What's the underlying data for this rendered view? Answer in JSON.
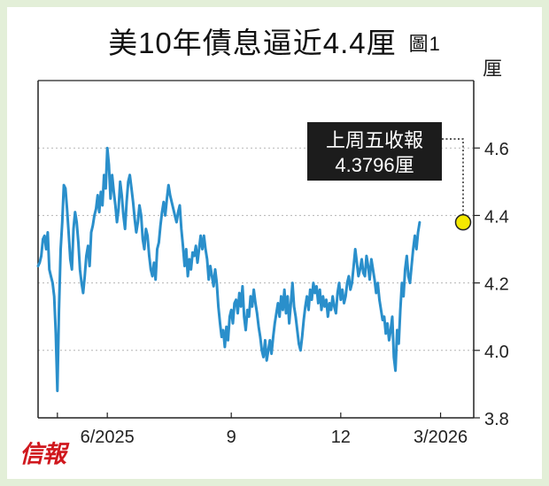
{
  "header": {
    "title": "美10年債息逼近4.4厘",
    "figure_label": "圖1"
  },
  "logo_text": "信報",
  "colors": {
    "line": "#2a8fcb",
    "grid": "#b5b5b5",
    "marker": "#f4e900",
    "callout_bg": "#1c1c1c",
    "background": "#e3efd8"
  },
  "chart_data": {
    "type": "line",
    "ylabel": "厘",
    "ylim": [
      3.8,
      4.8
    ],
    "yticks": [
      3.8,
      4.0,
      4.2,
      4.4,
      4.6
    ],
    "grid": "horizontal-dotted",
    "xlim": [
      0,
      264
    ],
    "xticks": [
      {
        "label": "6/2025",
        "x": 43
      },
      {
        "label": "9",
        "x": 120
      },
      {
        "label": "12",
        "x": 188
      },
      {
        "label": "3/2026",
        "x": 250
      }
    ],
    "annotation": {
      "text_line1": "上周五收報",
      "text_line2": "4.3796厘",
      "x": 264,
      "y": 4.3796
    },
    "series": [
      {
        "values": [
          4.25,
          4.26,
          4.28,
          4.33,
          4.34,
          4.3,
          4.35,
          4.24,
          4.22,
          4.2,
          4.16,
          4.05,
          3.88,
          4.12,
          4.3,
          4.38,
          4.49,
          4.48,
          4.42,
          4.35,
          4.27,
          4.24,
          4.36,
          4.41,
          4.38,
          4.32,
          4.24,
          4.2,
          4.17,
          4.22,
          4.28,
          4.31,
          4.25,
          4.35,
          4.37,
          4.4,
          4.42,
          4.46,
          4.41,
          4.47,
          4.43,
          4.52,
          4.48,
          4.6,
          4.55,
          4.45,
          4.52,
          4.47,
          4.43,
          4.38,
          4.42,
          4.5,
          4.46,
          4.4,
          4.36,
          4.44,
          4.5,
          4.52,
          4.48,
          4.44,
          4.39,
          4.35,
          4.38,
          4.43,
          4.4,
          4.33,
          4.3,
          4.36,
          4.34,
          4.28,
          4.24,
          4.22,
          4.26,
          4.21,
          4.3,
          4.32,
          4.37,
          4.41,
          4.44,
          4.4,
          4.45,
          4.49,
          4.46,
          4.44,
          4.42,
          4.4,
          4.38,
          4.41,
          4.43,
          4.36,
          4.31,
          4.25,
          4.3,
          4.22,
          4.27,
          4.24,
          4.29,
          4.28,
          4.31,
          4.26,
          4.3,
          4.34,
          4.3,
          4.34,
          4.3,
          4.27,
          4.21,
          4.25,
          4.22,
          4.19,
          4.24,
          4.2,
          4.13,
          4.08,
          4.04,
          4.06,
          4.01,
          4.07,
          4.03,
          4.1,
          4.12,
          4.08,
          4.14,
          4.15,
          4.11,
          4.17,
          4.13,
          4.19,
          4.1,
          4.06,
          4.12,
          4.1,
          4.16,
          4.13,
          4.18,
          4.14,
          4.11,
          4.07,
          4.04,
          4.0,
          3.98,
          4.03,
          3.97,
          4.0,
          4.03,
          3.99,
          4.04,
          4.08,
          4.11,
          4.14,
          4.1,
          4.16,
          4.12,
          4.18,
          4.11,
          4.16,
          4.08,
          4.14,
          4.2,
          4.13,
          4.1,
          4.06,
          4.02,
          4.0,
          4.04,
          4.09,
          4.13,
          4.16,
          4.12,
          4.18,
          4.15,
          4.2,
          4.17,
          4.19,
          4.14,
          4.18,
          4.12,
          4.16,
          4.13,
          4.15,
          4.1,
          4.14,
          4.12,
          4.16,
          4.13,
          4.11,
          4.17,
          4.2,
          4.15,
          4.18,
          4.14,
          4.16,
          4.2,
          4.22,
          4.18,
          4.2,
          4.25,
          4.3,
          4.26,
          4.22,
          4.24,
          4.27,
          4.23,
          4.22,
          4.28,
          4.25,
          4.21,
          4.27,
          4.24,
          4.21,
          4.17,
          4.2,
          4.15,
          4.12,
          4.09,
          4.1,
          4.05,
          4.08,
          4.03,
          4.06,
          4.1,
          3.98,
          3.94,
          4.06,
          4.02,
          4.12,
          4.2,
          4.16,
          4.24,
          4.28,
          4.22,
          4.2,
          4.25,
          4.3,
          4.34,
          4.3,
          4.35,
          4.3796
        ]
      }
    ]
  }
}
